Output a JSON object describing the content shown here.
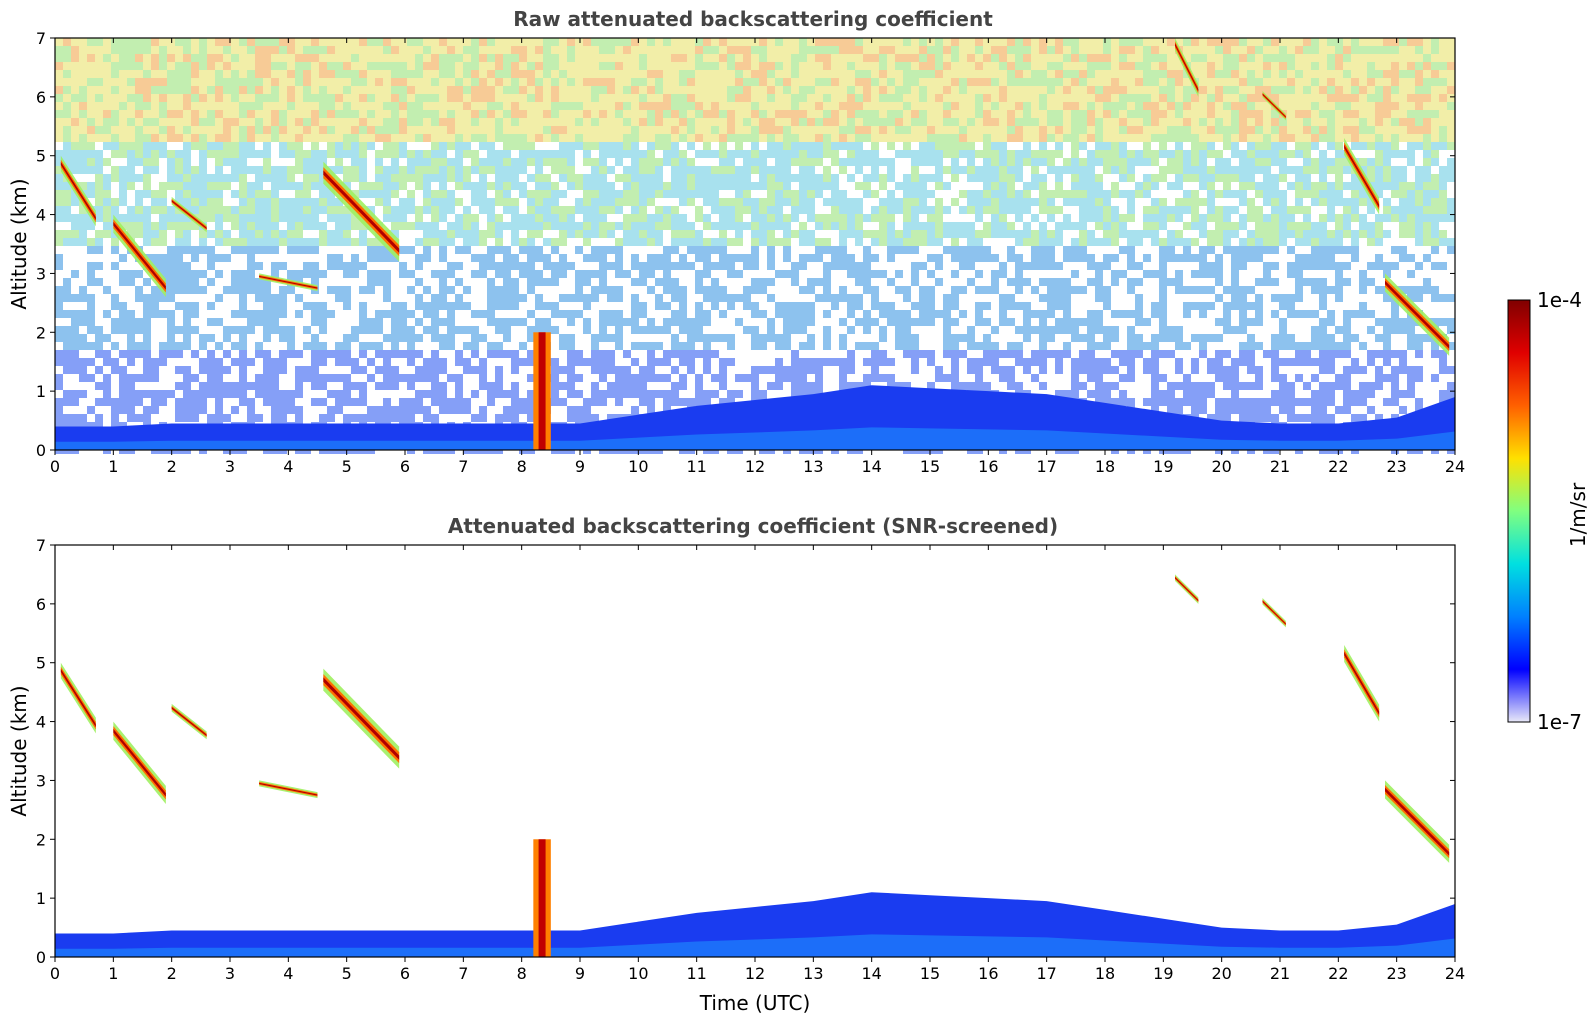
{
  "chart_data": [
    {
      "type": "heatmap",
      "title": "Raw attenuated backscattering coefficient",
      "xlabel": "",
      "ylabel": "Altitude (km)",
      "xlim": [
        0,
        24
      ],
      "ylim": [
        0,
        7
      ],
      "xticks": [
        "0",
        "1",
        "2",
        "3",
        "4",
        "5",
        "6",
        "7",
        "8",
        "9",
        "10",
        "11",
        "12",
        "13",
        "14",
        "15",
        "16",
        "17",
        "18",
        "19",
        "20",
        "21",
        "22",
        "23",
        "24"
      ],
      "yticks": [
        "0",
        "1",
        "2",
        "3",
        "4",
        "5",
        "6",
        "7"
      ],
      "screened": false,
      "features": [
        {
          "kind": "boundary_layer",
          "time_start": 0,
          "time_end": 24,
          "top_km": [
            0.4,
            0.4,
            0.45,
            0.45,
            0.45,
            0.45,
            0.45,
            0.45,
            0.45,
            0.45,
            0.6,
            0.75,
            0.85,
            0.95,
            1.1,
            1.05,
            1.0,
            0.95,
            0.8,
            0.65,
            0.5,
            0.45,
            0.45,
            0.55,
            0.9
          ]
        },
        {
          "kind": "cloud_layer",
          "time_start": 0.1,
          "time_end": 0.7,
          "alt_top_km": 5.0,
          "alt_bottom_km": 3.8
        },
        {
          "kind": "cloud_layer",
          "time_start": 1.0,
          "time_end": 1.9,
          "alt_top_km": 4.0,
          "alt_bottom_km": 2.6
        },
        {
          "kind": "cloud_layer",
          "time_start": 2.0,
          "time_end": 2.6,
          "alt_top_km": 4.3,
          "alt_bottom_km": 3.7
        },
        {
          "kind": "cloud_layer",
          "time_start": 3.5,
          "time_end": 4.5,
          "alt_top_km": 3.0,
          "alt_bottom_km": 2.7
        },
        {
          "kind": "cloud_layer",
          "time_start": 4.6,
          "time_end": 5.9,
          "alt_top_km": 4.9,
          "alt_bottom_km": 3.2
        },
        {
          "kind": "precipitation",
          "time_start": 8.2,
          "time_end": 8.5,
          "alt_top_km": 2.0,
          "alt_bottom_km": 0.0
        },
        {
          "kind": "cloud_layer",
          "time_start": 19.2,
          "time_end": 19.6,
          "alt_top_km": 7.0,
          "alt_bottom_km": 6.0
        },
        {
          "kind": "cloud_layer",
          "time_start": 20.7,
          "time_end": 21.1,
          "alt_top_km": 6.1,
          "alt_bottom_km": 5.6
        },
        {
          "kind": "cloud_layer",
          "time_start": 22.1,
          "time_end": 22.7,
          "alt_top_km": 5.3,
          "alt_bottom_km": 4.0
        },
        {
          "kind": "cloud_layer",
          "time_start": 22.8,
          "time_end": 23.9,
          "alt_top_km": 3.0,
          "alt_bottom_km": 1.6
        }
      ]
    },
    {
      "type": "heatmap",
      "title": "Attenuated backscattering coefficient (SNR-screened)",
      "xlabel": "Time (UTC)",
      "ylabel": "Altitude (km)",
      "xlim": [
        0,
        24
      ],
      "ylim": [
        0,
        7
      ],
      "xticks": [
        "0",
        "1",
        "2",
        "3",
        "4",
        "5",
        "6",
        "7",
        "8",
        "9",
        "10",
        "11",
        "12",
        "13",
        "14",
        "15",
        "16",
        "17",
        "18",
        "19",
        "20",
        "21",
        "22",
        "23",
        "24"
      ],
      "yticks": [
        "0",
        "1",
        "2",
        "3",
        "4",
        "5",
        "6",
        "7"
      ],
      "screened": true,
      "features": [
        {
          "kind": "boundary_layer",
          "time_start": 0,
          "time_end": 24,
          "top_km": [
            0.4,
            0.4,
            0.45,
            0.45,
            0.45,
            0.45,
            0.45,
            0.45,
            0.45,
            0.45,
            0.6,
            0.75,
            0.85,
            0.95,
            1.1,
            1.05,
            1.0,
            0.95,
            0.8,
            0.65,
            0.5,
            0.45,
            0.45,
            0.55,
            0.9
          ]
        },
        {
          "kind": "cloud_layer",
          "time_start": 0.1,
          "time_end": 0.7,
          "alt_top_km": 5.0,
          "alt_bottom_km": 3.8
        },
        {
          "kind": "cloud_layer",
          "time_start": 1.0,
          "time_end": 1.9,
          "alt_top_km": 4.0,
          "alt_bottom_km": 2.6
        },
        {
          "kind": "cloud_layer",
          "time_start": 2.0,
          "time_end": 2.6,
          "alt_top_km": 4.3,
          "alt_bottom_km": 3.7
        },
        {
          "kind": "cloud_layer",
          "time_start": 3.5,
          "time_end": 4.5,
          "alt_top_km": 3.0,
          "alt_bottom_km": 2.7
        },
        {
          "kind": "cloud_layer",
          "time_start": 4.6,
          "time_end": 5.9,
          "alt_top_km": 4.9,
          "alt_bottom_km": 3.2
        },
        {
          "kind": "precipitation",
          "time_start": 8.2,
          "time_end": 8.5,
          "alt_top_km": 2.0,
          "alt_bottom_km": 0.0
        },
        {
          "kind": "cloud_layer",
          "time_start": 19.2,
          "time_end": 19.6,
          "alt_top_km": 6.5,
          "alt_bottom_km": 6.0
        },
        {
          "kind": "cloud_layer",
          "time_start": 20.7,
          "time_end": 21.1,
          "alt_top_km": 6.1,
          "alt_bottom_km": 5.6
        },
        {
          "kind": "cloud_layer",
          "time_start": 22.1,
          "time_end": 22.7,
          "alt_top_km": 5.3,
          "alt_bottom_km": 4.0
        },
        {
          "kind": "cloud_layer",
          "time_start": 22.8,
          "time_end": 23.9,
          "alt_top_km": 3.0,
          "alt_bottom_km": 1.6
        }
      ]
    }
  ],
  "colorbar": {
    "max_label": "1e-4",
    "min_label": "1e-7",
    "unit_label": "1/m/sr",
    "scale": "log",
    "colors": [
      "#e8e8f8",
      "#0000ff",
      "#0080ff",
      "#00e0e0",
      "#80ff80",
      "#ffe000",
      "#ff6000",
      "#e00000",
      "#800000"
    ]
  }
}
